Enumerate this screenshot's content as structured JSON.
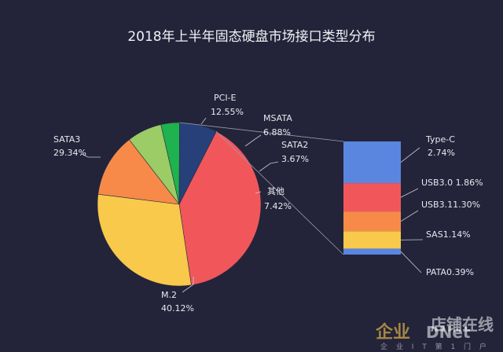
{
  "chart_data": {
    "type": "pie",
    "title": "2018年上半年固态硬盘市场接口类型分布",
    "slices": [
      {
        "name": "M.2",
        "value": 40.12,
        "pct_label": "40.12%",
        "color": "#f1575a"
      },
      {
        "name": "SATA3",
        "value": 29.34,
        "pct_label": "29.34%",
        "color": "#f8c94a"
      },
      {
        "name": "PCI-E",
        "value": 12.55,
        "pct_label": "12.55%",
        "color": "#f78a49"
      },
      {
        "name": "MSATA",
        "value": 6.88,
        "pct_label": "6.88%",
        "color": "#9ccc65"
      },
      {
        "name": "SATA2",
        "value": 3.67,
        "pct_label": "3.67%",
        "color": "#1fb24e"
      },
      {
        "name": "其他",
        "value": 7.42,
        "pct_label": "7.42%",
        "color": "#27407a"
      }
    ],
    "breakdown_of": "其他",
    "breakdown": [
      {
        "label": "Type-C\n2.74%",
        "value": 2.74,
        "color": "#5b86e0"
      },
      {
        "label": "USB3.0 1.86%",
        "value": 1.86,
        "color": "#f1575a"
      },
      {
        "label": "USB3.11.30%",
        "value": 1.3,
        "color": "#f78a49"
      },
      {
        "label": "SAS1.14%",
        "value": 1.14,
        "color": "#f8c94a"
      },
      {
        "label": "PATA0.39%",
        "value": 0.39,
        "color": "#5b86e0"
      }
    ]
  },
  "watermark": {
    "brand": "企业",
    "logo": "DNet",
    "tagline": "企 业 I T 第 1 门 户",
    "partial": "店铺在线"
  }
}
